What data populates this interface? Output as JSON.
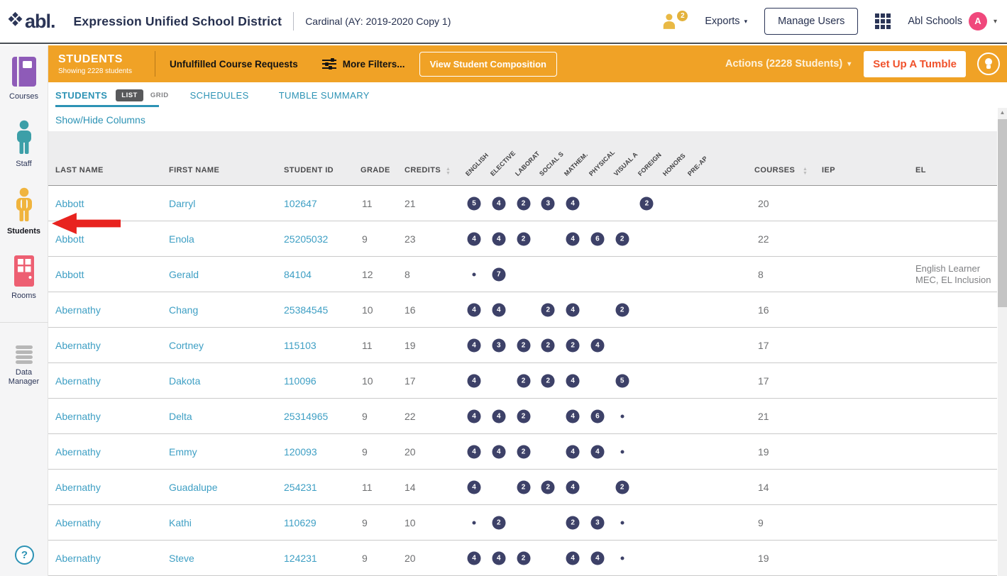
{
  "header": {
    "logo_text": "abl.",
    "district": "Expression Unified School District",
    "context": "Cardinal (AY: 2019-2020 Copy 1)",
    "users_badge": "2",
    "exports_label": "Exports",
    "manage_users_label": "Manage Users",
    "account_name": "Abl Schools",
    "avatar_initial": "A"
  },
  "sidebar": {
    "items": [
      {
        "label": "Courses",
        "icon": "book-icon",
        "active": false
      },
      {
        "label": "Staff",
        "icon": "person-icon",
        "active": false
      },
      {
        "label": "Students",
        "icon": "student-icon",
        "active": true
      },
      {
        "label": "Rooms",
        "icon": "door-icon",
        "active": false
      },
      {
        "label": "Data Manager",
        "icon": "database-icon",
        "active": false
      }
    ],
    "help_label": "?"
  },
  "toolbar": {
    "title": "STUDENTS",
    "subtitle": "Showing 2228 students",
    "unfulfilled_label": "Unfulfilled Course Requests",
    "more_filters_label": "More Filters...",
    "view_composition_label": "View Student Composition",
    "actions_label": "Actions (2228 Students)",
    "set_up_tumble_label": "Set Up A Tumble"
  },
  "tabs": {
    "students_label": "STUDENTS",
    "list_label": "LIST",
    "grid_label": "GRID",
    "schedules_label": "SCHEDULES",
    "tumble_summary_label": "TUMBLE SUMMARY",
    "show_hide_columns_label": "Show/Hide Columns"
  },
  "table": {
    "headers": {
      "last_name": "LAST NAME",
      "first_name": "FIRST NAME",
      "student_id": "STUDENT ID",
      "grade": "GRADE",
      "credits": "CREDITS",
      "subjects": [
        "ENGLISH",
        "ELECTIVE",
        "LABORAT",
        "SOCIAL S",
        "MATHEM.",
        "PHYSICAL",
        "VISUAL A",
        "FOREIGN",
        "HONORS",
        "PRE-AP"
      ],
      "courses": "COURSES",
      "iep": "IEP",
      "el": "EL"
    },
    "rows": [
      {
        "last_name": "Abbott",
        "first_name": "Darryl",
        "student_id": "102647",
        "grade": "11",
        "credits": "21",
        "subject_counts": [
          "5",
          "4",
          "2",
          "3",
          "4",
          "",
          "",
          "2",
          "",
          ""
        ],
        "courses": "20",
        "iep": "",
        "el": []
      },
      {
        "last_name": "Abbott",
        "first_name": "Enola",
        "student_id": "25205032",
        "grade": "9",
        "credits": "23",
        "subject_counts": [
          "4",
          "4",
          "2",
          "",
          "4",
          "6",
          "2",
          "",
          "",
          ""
        ],
        "courses": "22",
        "iep": "",
        "el": []
      },
      {
        "last_name": "Abbott",
        "first_name": "Gerald",
        "student_id": "84104",
        "grade": "12",
        "credits": "8",
        "subject_counts": [
          "•",
          "7",
          "",
          "",
          "",
          "",
          "",
          "",
          "",
          ""
        ],
        "courses": "8",
        "iep": "",
        "el": [
          "English Learner",
          "MEC, EL Inclusion"
        ]
      },
      {
        "last_name": "Abernathy",
        "first_name": "Chang",
        "student_id": "25384545",
        "grade": "10",
        "credits": "16",
        "subject_counts": [
          "4",
          "4",
          "",
          "2",
          "4",
          "",
          "2",
          "",
          "",
          ""
        ],
        "courses": "16",
        "iep": "",
        "el": []
      },
      {
        "last_name": "Abernathy",
        "first_name": "Cortney",
        "student_id": "115103",
        "grade": "11",
        "credits": "19",
        "subject_counts": [
          "4",
          "3",
          "2",
          "2",
          "2",
          "4",
          "",
          "",
          "",
          ""
        ],
        "courses": "17",
        "iep": "",
        "el": []
      },
      {
        "last_name": "Abernathy",
        "first_name": "Dakota",
        "student_id": "110096",
        "grade": "10",
        "credits": "17",
        "subject_counts": [
          "4",
          "",
          "2",
          "2",
          "4",
          "",
          "5",
          "",
          "",
          ""
        ],
        "courses": "17",
        "iep": "",
        "el": []
      },
      {
        "last_name": "Abernathy",
        "first_name": "Delta",
        "student_id": "25314965",
        "grade": "9",
        "credits": "22",
        "subject_counts": [
          "4",
          "4",
          "2",
          "",
          "4",
          "6",
          "•",
          "",
          "",
          ""
        ],
        "courses": "21",
        "iep": "",
        "el": []
      },
      {
        "last_name": "Abernathy",
        "first_name": "Emmy",
        "student_id": "120093",
        "grade": "9",
        "credits": "20",
        "subject_counts": [
          "4",
          "4",
          "2",
          "",
          "4",
          "4",
          "•",
          "",
          "",
          ""
        ],
        "courses": "19",
        "iep": "",
        "el": []
      },
      {
        "last_name": "Abernathy",
        "first_name": "Guadalupe",
        "student_id": "254231",
        "grade": "11",
        "credits": "14",
        "subject_counts": [
          "4",
          "",
          "2",
          "2",
          "4",
          "",
          "2",
          "",
          "",
          ""
        ],
        "courses": "14",
        "iep": "",
        "el": []
      },
      {
        "last_name": "Abernathy",
        "first_name": "Kathi",
        "student_id": "110629",
        "grade": "9",
        "credits": "10",
        "subject_counts": [
          "•",
          "2",
          "",
          "",
          "2",
          "3",
          "•",
          "",
          "",
          ""
        ],
        "courses": "9",
        "iep": "",
        "el": []
      },
      {
        "last_name": "Abernathy",
        "first_name": "Steve",
        "student_id": "124231",
        "grade": "9",
        "credits": "20",
        "subject_counts": [
          "4",
          "4",
          "2",
          "",
          "4",
          "4",
          "•",
          "",
          "",
          ""
        ],
        "courses": "19",
        "iep": "",
        "el": []
      }
    ]
  },
  "icons": {
    "caret_down": "▾",
    "sort_up": "▲",
    "sort_down": "▼",
    "scroll_up": "▲"
  },
  "colors": {
    "accent_orange": "#F0A226",
    "navy": "#2B3557",
    "teal": "#2D93B5",
    "link_blue": "#3E9FC4",
    "badge_navy": "#3D4168",
    "avatar_pink": "#F0487C",
    "gold": "#E9B944",
    "tumble_red": "#F0512B",
    "annotation_red": "#E8231F"
  }
}
